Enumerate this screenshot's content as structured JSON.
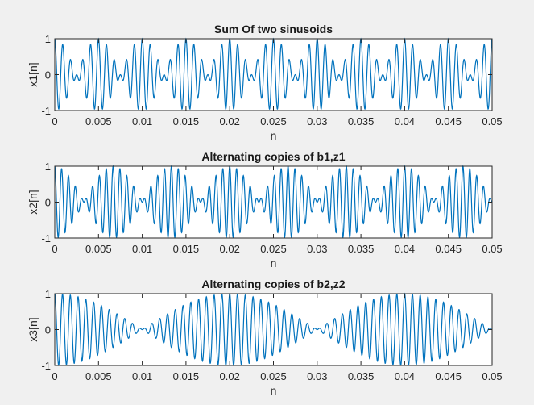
{
  "chart_data": [
    {
      "type": "line",
      "title": "Sum Of two sinusoids",
      "xlabel": "n",
      "ylabel": "x1[n]",
      "xlim": [
        0,
        0.05
      ],
      "ylim": [
        -1,
        1
      ],
      "xticks": [
        "0",
        "0.005",
        "0.01",
        "0.015",
        "0.02",
        "0.025",
        "0.03",
        "0.035",
        "0.04",
        "0.045",
        "0.05"
      ],
      "yticks": [
        "-1",
        "0",
        "1"
      ],
      "grid": false,
      "color": "#0072bd",
      "signal": {
        "kind": "sum-of-sinusoids",
        "components": [
          {
            "amplitude": 0.5,
            "frequency_hz": 1000
          },
          {
            "amplitude": 0.5,
            "frequency_hz": 1200
          }
        ]
      }
    },
    {
      "type": "line",
      "title": "Alternating copies of b1,z1",
      "xlabel": "n",
      "ylabel": "x2[n]",
      "xlim": [
        0,
        0.05
      ],
      "ylim": [
        -1,
        1
      ],
      "xticks": [
        "0",
        "0.005",
        "0.01",
        "0.015",
        "0.02",
        "0.025",
        "0.03",
        "0.035",
        "0.04",
        "0.045",
        "0.05"
      ],
      "yticks": [
        "-1",
        "0",
        "1"
      ],
      "grid": false,
      "color": "#0072bd",
      "signal": {
        "kind": "sum-of-sinusoids",
        "components": [
          {
            "amplitude": 0.5,
            "frequency_hz": 1200
          },
          {
            "amplitude": 0.5,
            "frequency_hz": 1350
          }
        ]
      }
    },
    {
      "type": "line",
      "title": "Alternating copies of b2,z2",
      "xlabel": "n",
      "ylabel": "x3[n]",
      "xlim": [
        0,
        0.05
      ],
      "ylim": [
        -1,
        1
      ],
      "xticks": [
        "0",
        "0.005",
        "0.01",
        "0.015",
        "0.02",
        "0.025",
        "0.03",
        "0.035",
        "0.04",
        "0.045",
        "0.05"
      ],
      "yticks": [
        "-1",
        "0",
        "1"
      ],
      "grid": false,
      "color": "#0072bd",
      "signal": {
        "kind": "sum-of-sinusoids",
        "components": [
          {
            "amplitude": 0.5,
            "frequency_hz": 1100
          },
          {
            "amplitude": 0.5,
            "frequency_hz": 1150
          }
        ]
      }
    }
  ]
}
